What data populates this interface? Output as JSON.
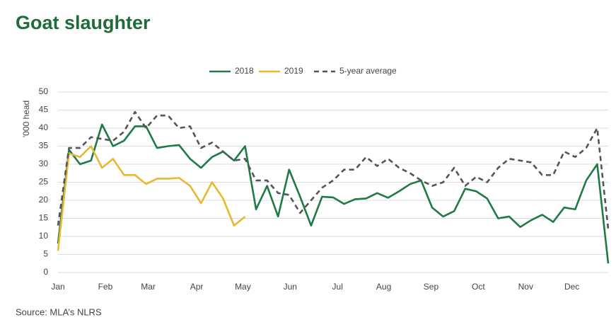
{
  "chart_data": {
    "type": "line",
    "title": "Goat slaughter",
    "y_label": "'000 head",
    "source": "Source: MLA’s NLRS",
    "x": [
      0,
      1,
      2,
      3,
      4,
      5,
      6,
      7,
      8,
      9,
      10,
      11,
      12,
      13,
      14,
      15,
      16,
      17,
      18,
      19,
      20,
      21,
      22,
      23,
      24,
      25,
      26,
      27,
      28,
      29,
      30,
      31,
      32,
      33,
      34,
      35,
      36,
      37,
      38,
      39,
      40,
      41,
      42,
      43,
      44,
      45,
      46,
      47,
      48,
      49,
      50
    ],
    "series": [
      {
        "name": "2018",
        "color": "#1e7a46",
        "dash": false,
        "values": [
          8,
          34,
          30,
          31,
          41,
          35,
          36.5,
          40.5,
          40.5,
          34.5,
          35,
          35.3,
          31.5,
          29,
          32,
          33.5,
          31,
          35,
          17.5,
          24,
          15.5,
          28.5,
          21,
          13,
          21,
          20.8,
          19,
          20.3,
          20.5,
          22,
          20.7,
          22.5,
          24.5,
          25.5,
          18,
          15.5,
          17,
          23.2,
          22.5,
          20.5,
          15,
          15.5,
          12.6,
          14.5,
          16,
          14,
          18,
          17.5,
          25.5,
          30,
          2.5
        ]
      },
      {
        "name": "2019",
        "color": "#e8b830",
        "dash": false,
        "values": [
          6,
          33,
          32,
          35,
          29,
          31.5,
          27,
          27,
          24.5,
          26,
          26,
          26.2,
          24,
          19.2,
          25,
          20.5,
          13,
          15.5,
          null,
          null,
          null,
          null,
          null,
          null,
          null,
          null,
          null,
          null,
          null,
          null,
          null,
          null,
          null,
          null,
          null,
          null,
          null,
          null,
          null,
          null,
          null,
          null,
          null,
          null,
          null,
          null,
          null,
          null,
          null,
          null,
          null
        ]
      },
      {
        "name": "5-year average",
        "color": "#555555",
        "dash": true,
        "values": [
          13,
          34.5,
          34.5,
          37.5,
          37,
          36.5,
          39,
          44.5,
          40,
          43.5,
          43.5,
          40,
          40.5,
          34.5,
          36,
          33.5,
          31,
          31.5,
          25.5,
          25.5,
          22,
          21.5,
          16.5,
          20,
          23.5,
          25.5,
          28.5,
          28.5,
          32,
          29.5,
          31.5,
          29,
          27.5,
          25.5,
          24,
          25,
          29,
          24,
          26.5,
          25,
          29,
          31.5,
          31,
          30.5,
          27,
          27,
          33.5,
          32,
          34.5,
          40,
          12
        ]
      }
    ],
    "xlim": [
      0,
      50
    ],
    "xticks": [
      {
        "value": 0,
        "label": "Jan"
      },
      {
        "value": 4.3,
        "label": "Feb"
      },
      {
        "value": 8.2,
        "label": "Mar"
      },
      {
        "value": 12.6,
        "label": "Apr"
      },
      {
        "value": 16.8,
        "label": "May"
      },
      {
        "value": 21.1,
        "label": "Jun"
      },
      {
        "value": 25.4,
        "label": "Jul"
      },
      {
        "value": 29.6,
        "label": "Aug"
      },
      {
        "value": 33.9,
        "label": "Sep"
      },
      {
        "value": 38.2,
        "label": "Oct"
      },
      {
        "value": 42.5,
        "label": "Nov"
      },
      {
        "value": 46.7,
        "label": "Dec"
      }
    ],
    "ylim": [
      0,
      50
    ],
    "yticks": [
      0,
      5,
      10,
      15,
      20,
      25,
      30,
      35,
      40,
      45,
      50
    ],
    "grid": true,
    "legend": "top"
  }
}
